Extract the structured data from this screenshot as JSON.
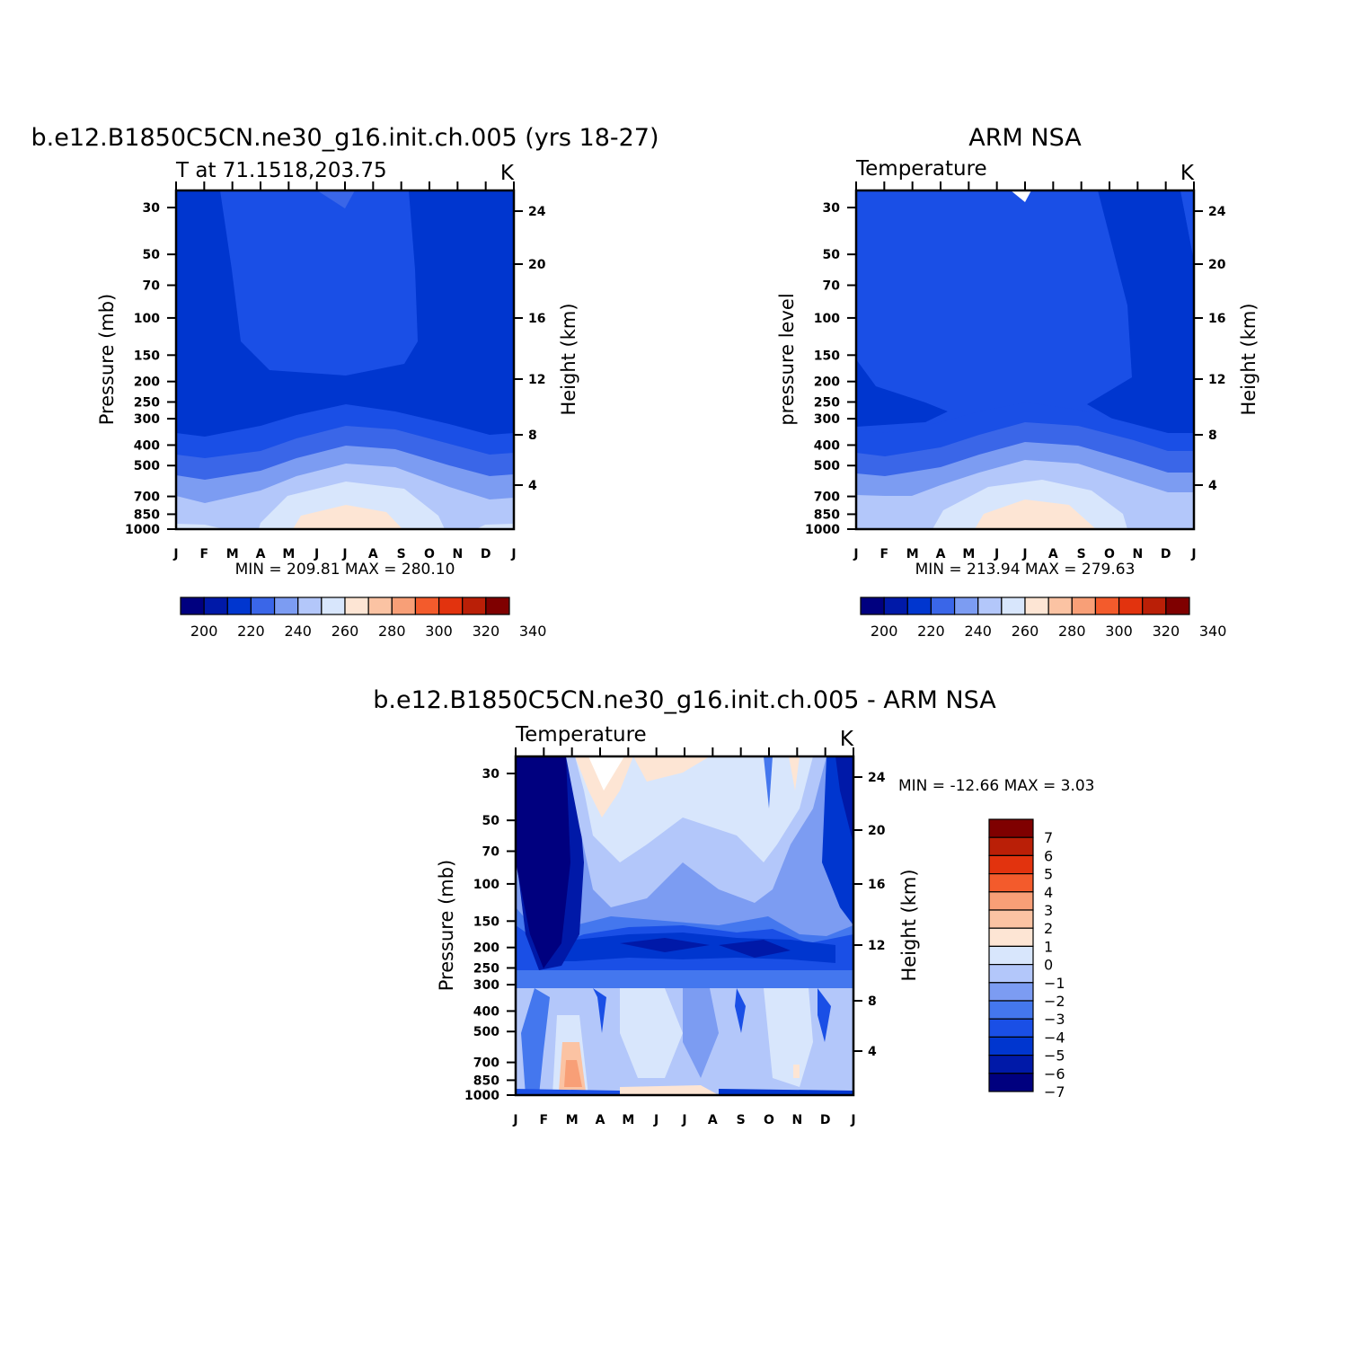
{
  "panels": [
    {
      "title": "b.e12.B1850C5CN.ne30_g16.init.ch.005 (yrs 18-27)",
      "subtitle_left": "T at 71.1518,203.75",
      "subtitle_right": "K",
      "ylabel_left": "Pressure (mb)",
      "ylabel_right": "Height (km)",
      "minmax": "MIN = 209.81 MAX = 280.10"
    },
    {
      "title": "ARM NSA",
      "subtitle_left": "Temperature",
      "subtitle_right": "K",
      "ylabel_left": "pressure level",
      "ylabel_right": "Height (km)",
      "minmax": "MIN = 213.94 MAX = 279.63"
    },
    {
      "title": "b.e12.B1850C5CN.ne30_g16.init.ch.005 - ARM NSA",
      "subtitle_left": "Temperature",
      "subtitle_right": "K",
      "ylabel_left": "Pressure (mb)",
      "ylabel_right": "Height (km)",
      "minmax": "MIN = -12.66 MAX =    3.03"
    }
  ],
  "chart_data": [
    {
      "type": "heatmap",
      "title": "b.e12.B1850C5CN.ne30_g16.init.ch.005 (yrs 18-27)",
      "subtitle": "T at 71.1518,203.75",
      "units": "K",
      "x_ticks": [
        "J",
        "F",
        "M",
        "A",
        "M",
        "J",
        "J",
        "A",
        "S",
        "O",
        "N",
        "D",
        "J"
      ],
      "y_ticks_pressure": [
        "30",
        "50",
        "70",
        "100",
        "150",
        "200",
        "250",
        "300",
        "400",
        "500",
        "700",
        "850",
        "1000"
      ],
      "y_ticks_height": [
        "24",
        "20",
        "16",
        "12",
        "8",
        "4"
      ],
      "y_scale": "log (inverted)",
      "levels": [
        200,
        210,
        220,
        230,
        240,
        250,
        260,
        270,
        280,
        290,
        300,
        310,
        320,
        330,
        340
      ],
      "colorbar_labels": [
        "200",
        "220",
        "240",
        "260",
        "280",
        "300",
        "320",
        "340"
      ],
      "min": 209.81,
      "max": 280.1,
      "approx_profile_K": {
        "30": 215,
        "100": 218,
        "200": 213,
        "300": 218,
        "400": 228,
        "500": 238,
        "700": 252,
        "850": 266,
        "1000": 272
      }
    },
    {
      "type": "heatmap",
      "title": "ARM NSA",
      "subtitle": "Temperature",
      "units": "K",
      "x_ticks": [
        "J",
        "F",
        "M",
        "A",
        "M",
        "J",
        "J",
        "A",
        "S",
        "O",
        "N",
        "D",
        "J"
      ],
      "y_ticks_pressure": [
        "30",
        "50",
        "70",
        "100",
        "150",
        "200",
        "250",
        "300",
        "400",
        "500",
        "700",
        "850",
        "1000"
      ],
      "y_ticks_height": [
        "24",
        "20",
        "16",
        "12",
        "8",
        "4"
      ],
      "y_scale": "log (inverted)",
      "levels": [
        200,
        210,
        220,
        230,
        240,
        250,
        260,
        270,
        280,
        290,
        300,
        310,
        320,
        330,
        340
      ],
      "colorbar_labels": [
        "200",
        "220",
        "240",
        "260",
        "280",
        "300",
        "320",
        "340"
      ],
      "min": 213.94,
      "max": 279.63,
      "approx_profile_K": {
        "30": 218,
        "100": 219,
        "200": 218,
        "300": 219,
        "400": 228,
        "500": 238,
        "700": 252,
        "850": 266,
        "1000": 272
      }
    },
    {
      "type": "heatmap",
      "title": "b.e12.B1850C5CN.ne30_g16.init.ch.005 - ARM NSA",
      "subtitle": "Temperature",
      "units": "K",
      "x_ticks": [
        "J",
        "F",
        "M",
        "A",
        "M",
        "J",
        "J",
        "A",
        "S",
        "O",
        "N",
        "D",
        "J"
      ],
      "y_ticks_pressure": [
        "30",
        "50",
        "70",
        "100",
        "150",
        "200",
        "250",
        "300",
        "400",
        "500",
        "700",
        "850",
        "1000"
      ],
      "y_ticks_height": [
        "24",
        "20",
        "16",
        "12",
        "8",
        "4"
      ],
      "y_scale": "log (inverted)",
      "levels": [
        -7,
        -6,
        -5,
        -4,
        -3,
        -2,
        -1,
        0,
        1,
        2,
        3,
        4,
        5,
        6,
        7
      ],
      "colorbar_labels": [
        "7",
        "6",
        "5",
        "4",
        "3",
        "2",
        "1",
        "0",
        "-1",
        "-2",
        "-3",
        "-4",
        "-5",
        "-6",
        "-7"
      ],
      "min": -12.66,
      "max": 3.03
    }
  ],
  "colors": {
    "scale": [
      "#00007f",
      "#0019a8",
      "#0036cf",
      "#3a66e8",
      "#7c9cf2",
      "#b3c7fa",
      "#d8e6fc",
      "#fde5d4",
      "#fbc3a3",
      "#f89f77",
      "#f35b2c",
      "#e2330e",
      "#ba1f07",
      "#7f0000"
    ],
    "cool_diff": [
      "#00007f",
      "#0019a8",
      "#0036cf",
      "#1a4fe6",
      "#4477ee",
      "#7c9cf2",
      "#b3c7fa",
      "#d8e6fc"
    ],
    "warm_diff": [
      "#fde5d4",
      "#fbc3a3",
      "#f89f77",
      "#f35b2c",
      "#e2330e",
      "#ba1f07",
      "#7f0000"
    ]
  }
}
